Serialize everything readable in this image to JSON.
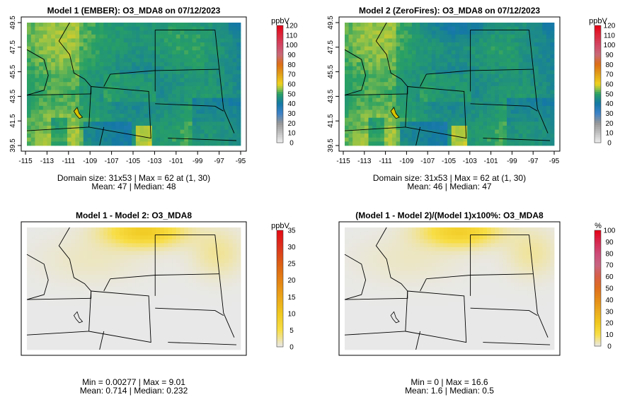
{
  "chart_data": [
    {
      "type": "heatmap",
      "title": "Model 1 (EMBER): O3_MDA8 on 07/12/2023",
      "unit": "ppbV",
      "legend_ticks": [
        0,
        10,
        20,
        30,
        40,
        50,
        60,
        70,
        80,
        90,
        100,
        110,
        120
      ],
      "scale": "conc",
      "xticks": [
        "-115",
        "-113",
        "-111",
        "-109",
        "-107",
        "-105",
        "-103",
        "-101",
        "-99",
        "-97",
        "-95"
      ],
      "yticks": [
        "39.5",
        "41.5",
        "43.5",
        "45.5",
        "47.5",
        "49.5"
      ],
      "xlim": [
        -115,
        -95
      ],
      "ylim": [
        39.5,
        49.5
      ],
      "grid_size": "31x53",
      "max": 62,
      "max_location": "(1, 30)",
      "mean": 47,
      "median": 48,
      "stats_line1": "Domain size: 31x53 | Max = 62 at (1, 30)",
      "stats_line2": "Mean: 47 |  Median: 48"
    },
    {
      "type": "heatmap",
      "title": "Model 2 (ZeroFires): O3_MDA8 on 07/12/2023",
      "unit": "ppbV",
      "legend_ticks": [
        0,
        10,
        20,
        30,
        40,
        50,
        60,
        70,
        80,
        90,
        100,
        110,
        120
      ],
      "scale": "conc",
      "xticks": [
        "-115",
        "-113",
        "-111",
        "-109",
        "-107",
        "-105",
        "-103",
        "-101",
        "-99",
        "-97",
        "-95"
      ],
      "yticks": [
        "39.5",
        "41.5",
        "43.5",
        "45.5",
        "47.5",
        "49.5"
      ],
      "xlim": [
        -115,
        -95
      ],
      "ylim": [
        39.5,
        49.5
      ],
      "grid_size": "31x53",
      "max": 62,
      "max_location": "(1, 30)",
      "mean": 46,
      "median": 47,
      "stats_line1": "Domain size: 31x53 | Max = 62 at (1, 30)",
      "stats_line2": "Mean: 46 |  Median: 47"
    },
    {
      "type": "heatmap",
      "title": "Model 1 - Model 2: O3_MDA8",
      "unit": "ppbV",
      "legend_ticks": [
        0,
        5,
        10,
        15,
        20,
        25,
        30,
        35
      ],
      "scale": "diff",
      "min": 0.00277,
      "max": 9.01,
      "mean": 0.714,
      "median": 0.232,
      "stats_line1": "Min = 0.00277 | Max = 9.01",
      "stats_line2": "Mean: 0.714 |  Median: 0.232"
    },
    {
      "type": "heatmap",
      "title": "(Model 1 - Model 2)/(Model 1)x100%: O3_MDA8",
      "unit": "%",
      "legend_ticks": [
        0,
        10,
        20,
        30,
        40,
        50,
        60,
        70,
        80,
        90,
        100
      ],
      "scale": "pct",
      "min": 0,
      "max": 16.6,
      "mean": 1.6,
      "median": 0.5,
      "stats_line1": "Min = 0 | Max = 16.6",
      "stats_line2": "Mean: 1.6 |  Median: 0.5"
    }
  ]
}
